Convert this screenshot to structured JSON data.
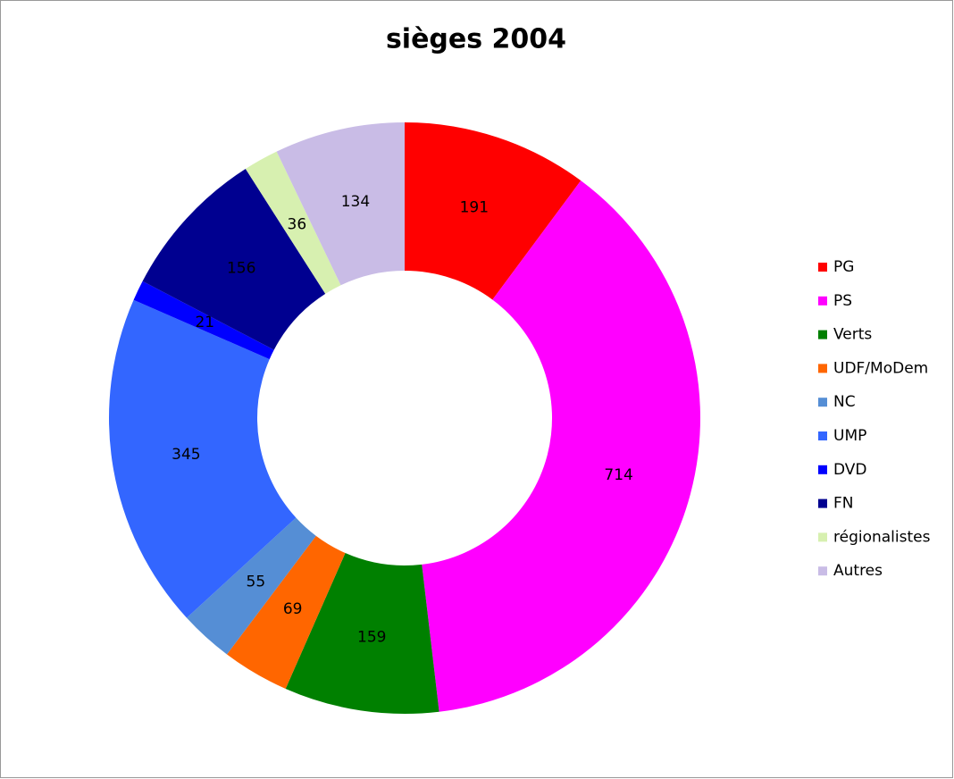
{
  "chart_data": {
    "type": "donut",
    "title": "sièges 2004",
    "categories": [
      "PG",
      "PS",
      "Verts",
      "UDF/MoDem",
      "NC",
      "UMP",
      "DVD",
      "FN",
      "régionalistes",
      "Autres"
    ],
    "values": [
      191,
      714,
      159,
      69,
      55,
      345,
      21,
      156,
      36,
      134
    ],
    "colors": [
      "#ff0000",
      "#ff00ff",
      "#008000",
      "#ff6600",
      "#558ed5",
      "#3366ff",
      "#0000ff",
      "#000090",
      "#d7f0b0",
      "#c9bce6"
    ],
    "legend": "right"
  }
}
